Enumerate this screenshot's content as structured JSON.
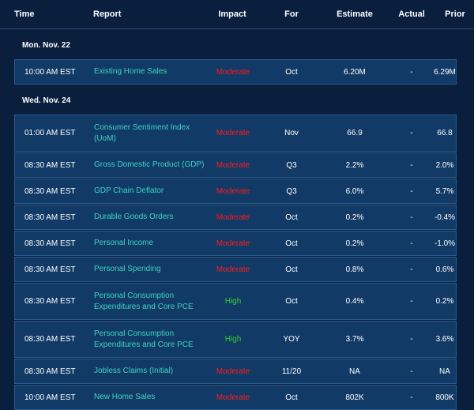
{
  "header": {
    "time": "Time",
    "report": "Report",
    "impact": "Impact",
    "for": "For",
    "estimate": "Estimate",
    "actual": "Actual",
    "prior": "Prior"
  },
  "groups": [
    {
      "day": "Mon. Nov. 22",
      "rows": [
        {
          "time": "10:00 AM EST",
          "report": "Existing Home Sales",
          "impact": "Moderate",
          "for": "Oct",
          "estimate": "6.20M",
          "actual": "-",
          "prior": "6.29M"
        }
      ]
    },
    {
      "day": "Wed. Nov. 24",
      "rows": [
        {
          "time": "01:00 AM EST",
          "report": "Consumer Sentiment Index (UoM)",
          "impact": "Moderate",
          "for": "Nov",
          "estimate": "66.9",
          "actual": "-",
          "prior": "66.8"
        },
        {
          "time": "08:30 AM EST",
          "report": "Gross Domestic Product (GDP)",
          "impact": "Moderate",
          "for": "Q3",
          "estimate": "2.2%",
          "actual": "-",
          "prior": "2.0%"
        },
        {
          "time": "08:30 AM EST",
          "report": "GDP Chain Deflator",
          "impact": "Moderate",
          "for": "Q3",
          "estimate": "6.0%",
          "actual": "-",
          "prior": "5.7%"
        },
        {
          "time": "08:30 AM EST",
          "report": "Durable Goods Orders",
          "impact": "Moderate",
          "for": "Oct",
          "estimate": "0.2%",
          "actual": "-",
          "prior": "-0.4%"
        },
        {
          "time": "08:30 AM EST",
          "report": "Personal Income",
          "impact": "Moderate",
          "for": "Oct",
          "estimate": "0.2%",
          "actual": "-",
          "prior": "-1.0%"
        },
        {
          "time": "08:30 AM EST",
          "report": "Personal Spending",
          "impact": "Moderate",
          "for": "Oct",
          "estimate": "0.8%",
          "actual": "-",
          "prior": "0.6%"
        },
        {
          "time": "08:30 AM EST",
          "report": "Personal Consumption Expenditures and Core PCE",
          "impact": "High",
          "for": "Oct",
          "estimate": "0.4%",
          "actual": "-",
          "prior": "0.2%"
        },
        {
          "time": "08:30 AM EST",
          "report": "Personal Consumption Expenditures and Core PCE",
          "impact": "High",
          "for": "YOY",
          "estimate": "3.7%",
          "actual": "-",
          "prior": "3.6%"
        },
        {
          "time": "08:30 AM EST",
          "report": "Jobless Claims (Initial)",
          "impact": "Moderate",
          "for": "11/20",
          "estimate": "NA",
          "actual": "-",
          "prior": "NA"
        },
        {
          "time": "10:00 AM EST",
          "report": "New Home Sales",
          "impact": "Moderate",
          "for": "Oct",
          "estimate": "802K",
          "actual": "-",
          "prior": "800K"
        }
      ]
    }
  ],
  "colors": {
    "background": "#0a1e3d",
    "row": "#123a66",
    "report_link": "#3fd3c0",
    "moderate": "#ff1a1a",
    "high": "#2fd12f"
  }
}
